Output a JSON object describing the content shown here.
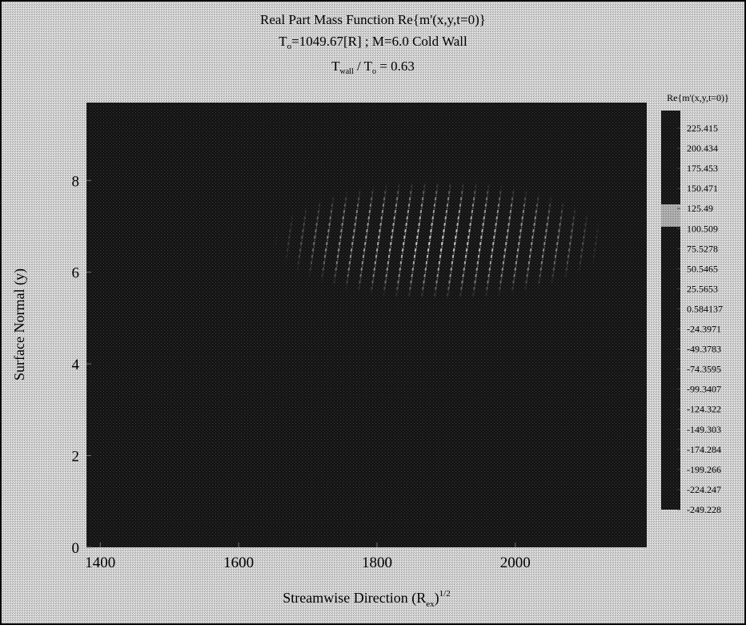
{
  "chart_data": {
    "type": "contour",
    "title": "Real Part Mass Function Re{m'(x,y,t=0)}",
    "subtitle": [
      "T",
      "o",
      "=1049.67[R] ; M=6.0 Cold Wall"
    ],
    "subtitle2": [
      "T",
      "wall",
      " / T",
      "o",
      " = 0.63"
    ],
    "xlabel": [
      "Streamwise Direction (R",
      "ex",
      ")",
      "1/2"
    ],
    "ylabel": "Surface Normal (y)",
    "xlim": [
      1380,
      2190
    ],
    "xticks": [
      1400,
      1600,
      1800,
      2000
    ],
    "ylim": [
      0,
      9.7
    ],
    "yticks": [
      0,
      2,
      4,
      6,
      8
    ],
    "colorbar": {
      "label": "Re{m'(x,y,t=0)}",
      "levels": [
        225.415,
        200.434,
        175.453,
        150.471,
        125.49,
        100.509,
        75.5278,
        50.5465,
        25.5653,
        0.584137,
        -24.3971,
        -49.3783,
        -74.3595,
        -99.3407,
        -124.322,
        -149.303,
        -174.284,
        -199.266,
        -224.247,
        -249.228
      ]
    }
  }
}
